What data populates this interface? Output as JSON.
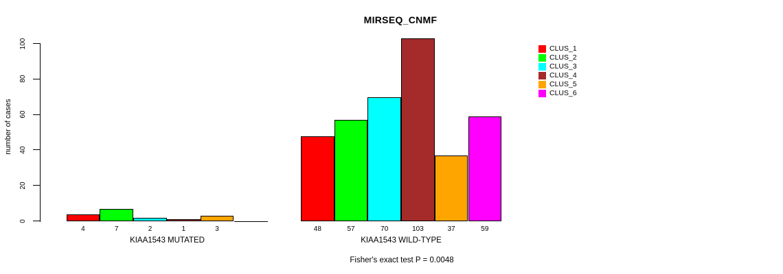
{
  "chart_data": {
    "type": "bar",
    "title": "MIRSEQ_CNMF",
    "ylabel": "number of cases",
    "xlabel": "",
    "ylim": [
      0,
      100
    ],
    "yticks": [
      0,
      20,
      40,
      60,
      80,
      100
    ],
    "grid": false,
    "legend_position": "right",
    "series": [
      {
        "name": "CLUS_1",
        "color": "#ff0000"
      },
      {
        "name": "CLUS_2",
        "color": "#00ff00"
      },
      {
        "name": "CLUS_3",
        "color": "#00ffff"
      },
      {
        "name": "CLUS_4",
        "color": "#a52a2a"
      },
      {
        "name": "CLUS_5",
        "color": "#ffa500"
      },
      {
        "name": "CLUS_6",
        "color": "#ff00ff"
      }
    ],
    "groups": [
      {
        "label": "KIAA1543 MUTATED",
        "values": [
          4,
          7,
          2,
          1,
          3,
          0
        ],
        "bar_labels": [
          "4",
          "7",
          "2",
          "1",
          "3",
          ""
        ]
      },
      {
        "label": "KIAA1543 WILD-TYPE",
        "values": [
          48,
          57,
          70,
          103,
          37,
          59
        ],
        "bar_labels": [
          "48",
          "57",
          "70",
          "103",
          "37",
          "59"
        ]
      }
    ],
    "annotation": "Fisher's exact test P = 0.0048"
  }
}
